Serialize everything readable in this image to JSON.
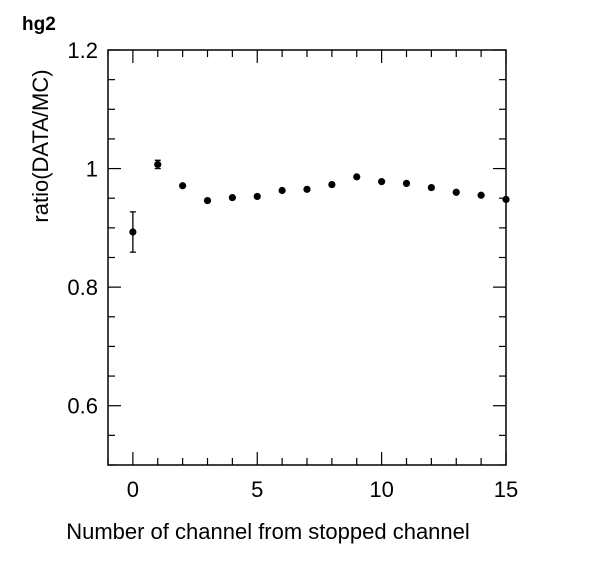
{
  "chart_data": {
    "type": "scatter",
    "title": "hg2",
    "xlabel": "Number of channel from stopped channel",
    "ylabel": "ratio(DATA/MC)",
    "xlim": [
      -1,
      15
    ],
    "ylim": [
      0.5,
      1.2
    ],
    "x_ticks": [
      0,
      5,
      10,
      15
    ],
    "y_ticks": [
      0.6,
      0.8,
      1.0,
      1.2
    ],
    "y_tick_labels": [
      "0.6",
      "0.8",
      "1",
      "1.2"
    ],
    "grid": false,
    "series": [
      {
        "x": [
          0,
          1,
          2,
          3,
          4,
          5,
          6,
          7,
          8,
          9,
          10,
          11,
          12,
          13,
          14,
          15
        ],
        "y": [
          0.893,
          1.007,
          0.971,
          0.946,
          0.951,
          0.953,
          0.963,
          0.965,
          0.973,
          0.986,
          0.978,
          0.975,
          0.968,
          0.96,
          0.955,
          0.948
        ],
        "yerr": [
          0.034,
          0.007,
          0.005,
          0.004,
          0.004,
          0.004,
          0.004,
          0.004,
          0.004,
          0.004,
          0.004,
          0.004,
          0.004,
          0.004,
          0.004,
          0.004
        ],
        "color": "#000000"
      }
    ]
  }
}
